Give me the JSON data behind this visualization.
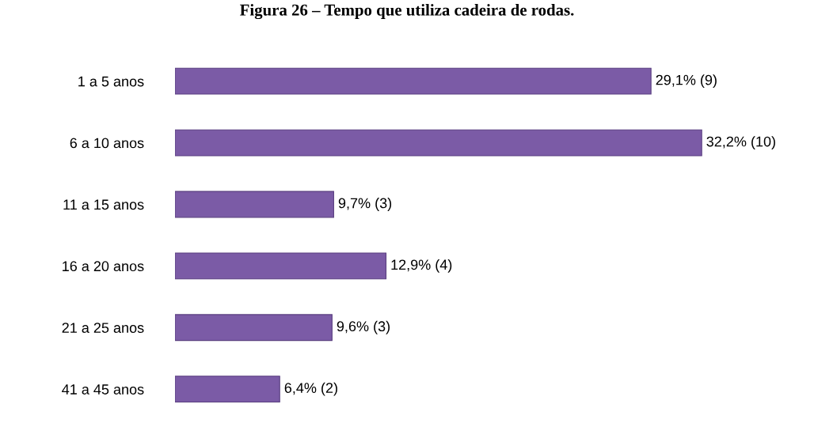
{
  "chart_data": {
    "type": "bar",
    "orientation": "horizontal",
    "title": "Figura 26 – Tempo que utiliza cadeira de rodas.",
    "categories": [
      "1 a 5 anos",
      "6 a 10 anos",
      "11 a 15 anos",
      "16 a 20 anos",
      "21 a 25 anos",
      "41 a 45 anos"
    ],
    "values": [
      29.1,
      32.2,
      9.7,
      12.9,
      9.6,
      6.4
    ],
    "value_labels": [
      "29,1% (9)",
      "32,2% (10)",
      "9,7% (3)",
      "12,9% (4)",
      "9,6% (3)",
      "6,4% (2)"
    ],
    "color": "#7b5ba6",
    "grid": false,
    "legend": false
  }
}
